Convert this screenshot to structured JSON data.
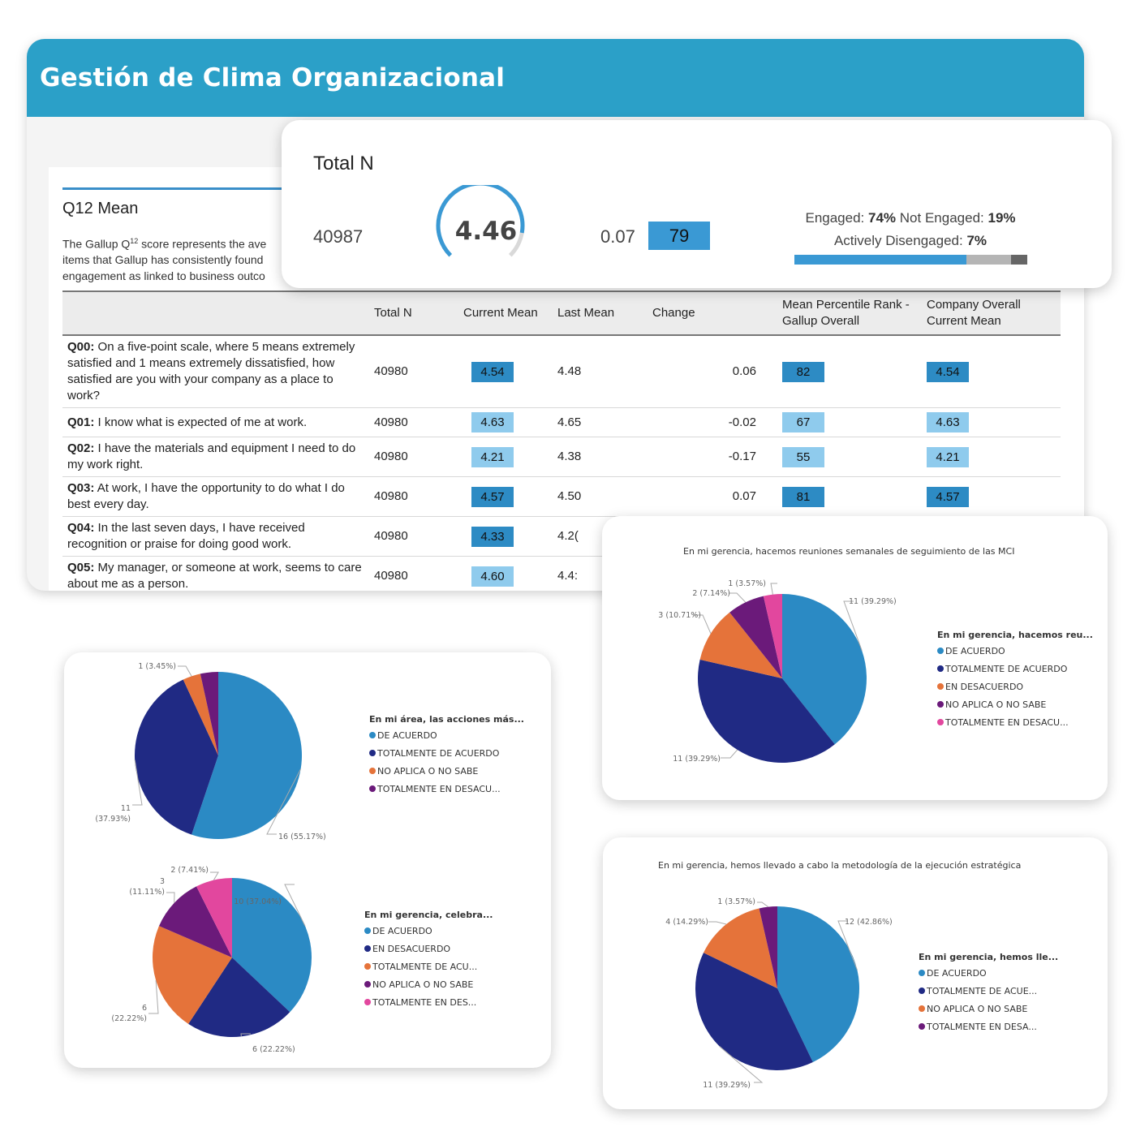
{
  "app": {
    "title": "Gestión de Clima Organizacional",
    "accent": "#2ba0c8"
  },
  "report": {
    "title": "Q12 Mean",
    "desc_lines": [
      "The Gallup Q",
      "12",
      " score represents the ave",
      "items that Gallup has consistently found",
      "engagement as linked to business outco"
    ],
    "columns": [
      "",
      "Total N",
      "Current Mean",
      "Last Mean",
      "Change",
      "Mean Percentile Rank - Gallup Overall",
      "Company Overall Current Mean"
    ],
    "rows": [
      {
        "id": "Q00:",
        "text": "On a five-point scale, where 5 means extremely satisfied and 1 means extremely dissatisfied, how satisfied are you with your company as a place to work?",
        "total_n": "40980",
        "current_mean": "4.54",
        "last_mean": "4.48",
        "change": "0.06",
        "rank": "82",
        "company_mean": "4.54",
        "shade": "dark"
      },
      {
        "id": "Q01:",
        "text": "I know what is expected of me at work.",
        "total_n": "40980",
        "current_mean": "4.63",
        "last_mean": "4.65",
        "change": "-0.02",
        "rank": "67",
        "company_mean": "4.63",
        "shade": "light"
      },
      {
        "id": "Q02:",
        "text": "I have the materials and equipment I need to do my work right.",
        "total_n": "40980",
        "current_mean": "4.21",
        "last_mean": "4.38",
        "change": "-0.17",
        "rank": "55",
        "company_mean": "4.21",
        "shade": "light"
      },
      {
        "id": "Q03:",
        "text": "At work, I have the opportunity to do what I do best every day.",
        "total_n": "40980",
        "current_mean": "4.57",
        "last_mean": "4.50",
        "change": "0.07",
        "rank": "81",
        "company_mean": "4.57",
        "shade": "dark"
      },
      {
        "id": "Q04:",
        "text": "In the last seven days, I have received recognition or praise for doing good work.",
        "total_n": "40980",
        "current_mean": "4.33",
        "last_mean": "4.2(",
        "change": "",
        "rank": "",
        "company_mean": "",
        "shade": "dark"
      },
      {
        "id": "Q05:",
        "text": "My manager, or someone at work, seems to care about me as a person.",
        "total_n": "40980",
        "current_mean": "4.60",
        "last_mean": "4.4:",
        "change": "",
        "rank": "",
        "company_mean": "",
        "shade": "light"
      }
    ]
  },
  "total_card": {
    "title": "Total N",
    "total_n": "40987",
    "gauge_value": "4.46",
    "gauge_fraction": 0.87,
    "change": "0.07",
    "rank": "79",
    "engaged_label": "Engaged:",
    "engaged_value": "74%",
    "not_engaged_label": "Not Engaged:",
    "not_engaged_value": "19%",
    "disengaged_label": "Actively Disengaged:",
    "disengaged_value": "7%",
    "engagement_split": [
      74,
      19,
      7
    ]
  },
  "chart_data": [
    {
      "type": "pie",
      "title": "",
      "legend_title": "En mi área, las acciones más...",
      "slices": [
        {
          "label": "DE ACUERDO",
          "value": 16,
          "display": "16 (55.17%)",
          "color": "#2b8ac4"
        },
        {
          "label": "TOTALMENTE DE ACUERDO",
          "value": 11,
          "display": "11\n(37.93%)",
          "color": "#202a84"
        },
        {
          "label": "NO APLICA O NO SABE",
          "value": 1,
          "display": "1 (3.45%)",
          "color": "#e5733a"
        },
        {
          "label": "TOTALMENTE EN DESACU...",
          "value": 1,
          "display": "",
          "color": "#6b1a7a"
        }
      ]
    },
    {
      "type": "pie",
      "title": "",
      "legend_title": "En mi gerencia, celebra...",
      "slices": [
        {
          "label": "DE ACUERDO",
          "value": 10,
          "display": "10 (37.04%)",
          "color": "#2b8ac4"
        },
        {
          "label": "EN DESACUERDO",
          "value": 6,
          "display": "6 (22.22%)",
          "color": "#202a84"
        },
        {
          "label": "TOTALMENTE DE ACU...",
          "value": 6,
          "display": "6\n(22.22%)",
          "color": "#e5733a"
        },
        {
          "label": "NO APLICA O NO SABE",
          "value": 3,
          "display": "3\n(11.11%)",
          "color": "#6b1a7a"
        },
        {
          "label": "TOTALMENTE EN DES...",
          "value": 2,
          "display": "2 (7.41%)",
          "color": "#e2479e"
        }
      ]
    },
    {
      "type": "pie",
      "title": "En mi gerencia, hacemos reuniones semanales de seguimiento de las MCI",
      "legend_title": "En mi gerencia, hacemos reu...",
      "slices": [
        {
          "label": "DE ACUERDO",
          "value": 11,
          "display": "11 (39.29%)",
          "color": "#2b8ac4"
        },
        {
          "label": "TOTALMENTE DE ACUERDO",
          "value": 11,
          "display": "11 (39.29%)",
          "color": "#202a84"
        },
        {
          "label": "EN DESACUERDO",
          "value": 3,
          "display": "3 (10.71%)",
          "color": "#e5733a"
        },
        {
          "label": "NO APLICA O NO SABE",
          "value": 2,
          "display": "2 (7.14%)",
          "color": "#6b1a7a"
        },
        {
          "label": "TOTALMENTE EN DESACU...",
          "value": 1,
          "display": "1 (3.57%)",
          "color": "#e2479e"
        }
      ]
    },
    {
      "type": "pie",
      "title": "En mi gerencia, hemos llevado a cabo la metodología de la ejecución estratégica",
      "legend_title": "En mi gerencia, hemos lle...",
      "slices": [
        {
          "label": "DE ACUERDO",
          "value": 12,
          "display": "12 (42.86%)",
          "color": "#2b8ac4"
        },
        {
          "label": "TOTALMENTE DE ACUE...",
          "value": 11,
          "display": "11 (39.29%)",
          "color": "#202a84"
        },
        {
          "label": "NO APLICA O NO SABE",
          "value": 4,
          "display": "4 (14.29%)",
          "color": "#e5733a"
        },
        {
          "label": "TOTALMENTE EN DESA...",
          "value": 1,
          "display": "1 (3.57%)",
          "color": "#6b1a7a"
        }
      ]
    }
  ]
}
